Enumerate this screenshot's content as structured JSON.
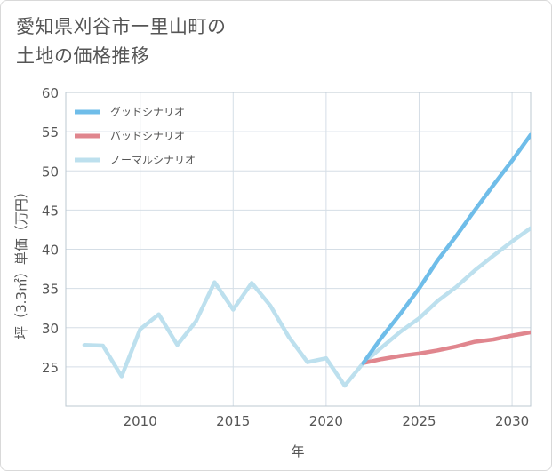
{
  "chart_data": {
    "type": "line",
    "title_lines": [
      "愛知県刈谷市一里山町の",
      "土地の価格推移"
    ],
    "xlabel": "年",
    "ylabel": "坪（3.3㎡）単価（万円）",
    "xlim": [
      2006,
      2031
    ],
    "ylim": [
      20,
      60
    ],
    "xticks": [
      2010,
      2015,
      2020,
      2025,
      2030
    ],
    "yticks": [
      25,
      30,
      35,
      40,
      45,
      50,
      55,
      60
    ],
    "series": [
      {
        "name": "グッドシナリオ",
        "color": "#6fbde9",
        "x": [
          2022,
          2023,
          2024,
          2025,
          2026,
          2027,
          2028,
          2029,
          2030,
          2031
        ],
        "y": [
          25.5,
          28.8,
          31.8,
          35.0,
          38.6,
          41.7,
          45.0,
          48.2,
          51.3,
          54.6
        ]
      },
      {
        "name": "バッドシナリオ",
        "color": "#e0868e",
        "x": [
          2022,
          2023,
          2024,
          2025,
          2026,
          2027,
          2028,
          2029,
          2030,
          2031
        ],
        "y": [
          25.5,
          26.0,
          26.4,
          26.7,
          27.1,
          27.6,
          28.2,
          28.5,
          29.0,
          29.4
        ]
      },
      {
        "name": "ノーマルシナリオ",
        "color": "#bde0ee",
        "x": [
          2007,
          2008,
          2009,
          2010,
          2011,
          2012,
          2013,
          2014,
          2015,
          2016,
          2017,
          2018,
          2019,
          2020,
          2021,
          2022,
          2023,
          2024,
          2025,
          2026,
          2027,
          2028,
          2029,
          2030,
          2031
        ],
        "y": [
          27.8,
          27.7,
          23.8,
          29.8,
          31.7,
          27.8,
          30.8,
          35.8,
          32.3,
          35.7,
          32.8,
          28.8,
          25.6,
          26.1,
          22.6,
          25.5,
          27.5,
          29.5,
          31.2,
          33.4,
          35.2,
          37.3,
          39.2,
          41.0,
          42.7
        ]
      }
    ]
  }
}
